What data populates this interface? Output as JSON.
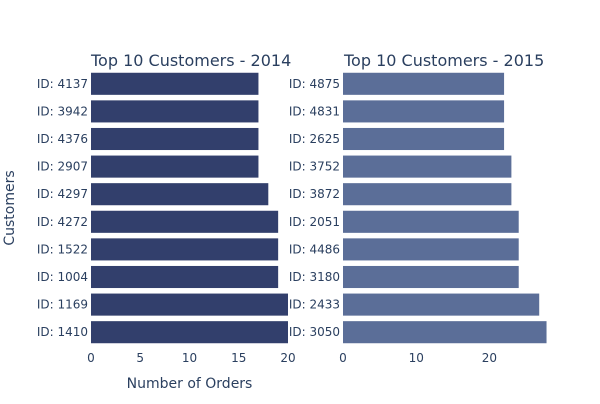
{
  "chart_data": [
    {
      "type": "bar",
      "orientation": "horizontal",
      "title": "Top 10 Customers - 2014",
      "categories": [
        "ID: 1410",
        "ID: 1169",
        "ID: 1004",
        "ID: 1522",
        "ID: 4272",
        "ID: 4297",
        "ID: 2907",
        "ID: 4376",
        "ID: 3942",
        "ID: 4137"
      ],
      "values": [
        20,
        20,
        19,
        19,
        19,
        18,
        17,
        17,
        17,
        17
      ],
      "xlabel": "Number of Orders",
      "ylabel": "Customers",
      "xlim": [
        0,
        20
      ],
      "xticks": [
        0,
        5,
        10,
        15,
        20
      ],
      "color": "#323f6c",
      "grid": false
    },
    {
      "type": "bar",
      "orientation": "horizontal",
      "title": "Top 10 Customers - 2015",
      "categories": [
        "ID: 3050",
        "ID: 2433",
        "ID: 3180",
        "ID: 4486",
        "ID: 2051",
        "ID: 3872",
        "ID: 3752",
        "ID: 2625",
        "ID: 4831",
        "ID: 4875"
      ],
      "values": [
        27.8,
        26.8,
        24,
        24,
        24,
        23,
        23,
        22,
        22,
        22
      ],
      "xlabel": "",
      "ylabel": "",
      "xlim": [
        0,
        28
      ],
      "xticks": [
        0,
        10,
        20
      ],
      "color": "#5b6e98",
      "grid": false
    }
  ]
}
